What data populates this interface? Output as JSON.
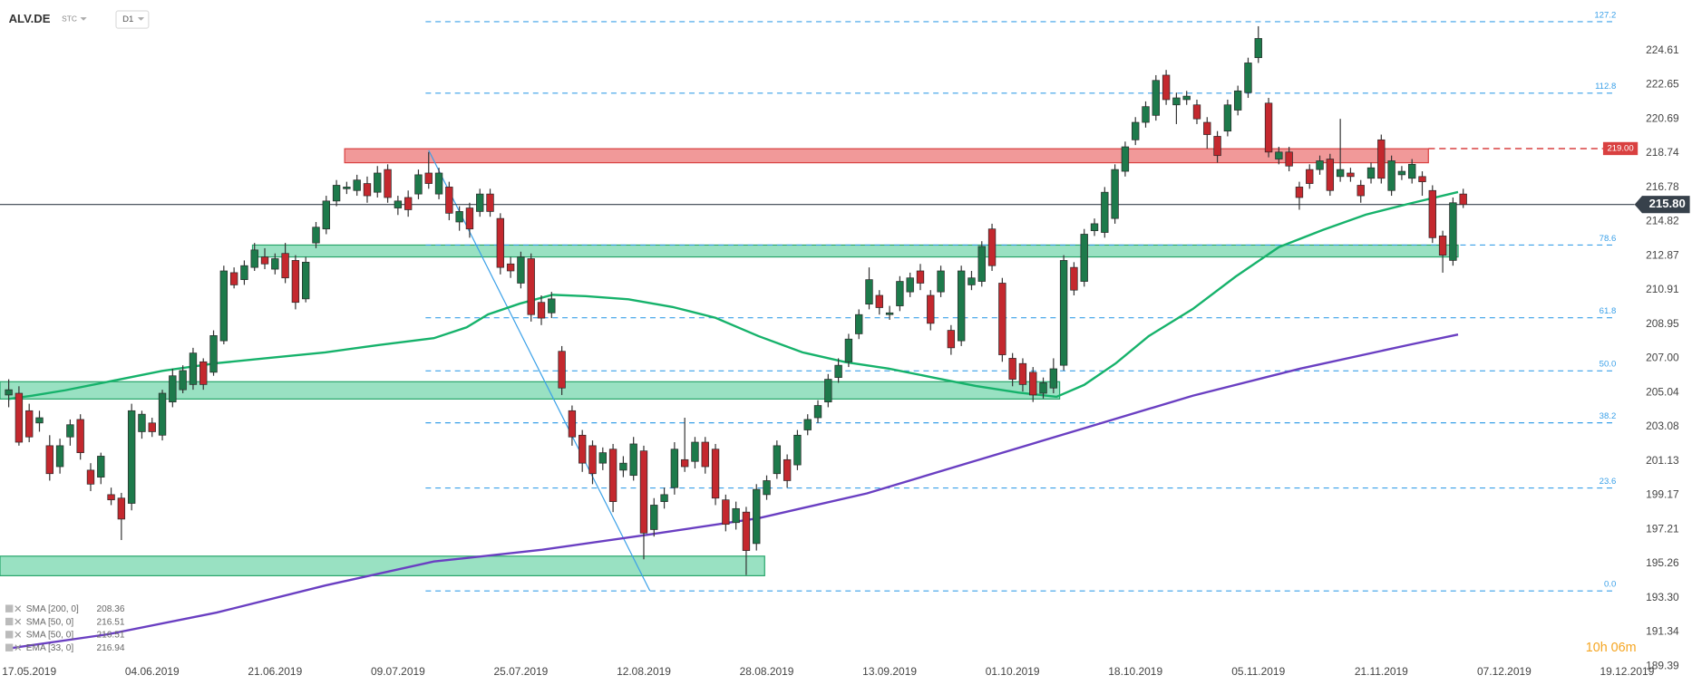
{
  "chart_data": {
    "type": "candlestick",
    "symbol": "ALV.DE",
    "instrument": "STC",
    "timeframe": "D1",
    "countdown": "10h 06m",
    "up_color": "#1d7a4b",
    "down_color": "#c4282e",
    "xlim": [
      -0.85,
      158.3
    ],
    "ylim": [
      189.3,
      227.5
    ],
    "xticks": [
      {
        "value": 2,
        "label": "17.05.2019"
      },
      {
        "value": 14,
        "label": "04.06.2019"
      },
      {
        "value": 26,
        "label": "21.06.2019"
      },
      {
        "value": 38,
        "label": "09.07.2019"
      },
      {
        "value": 50,
        "label": "25.07.2019"
      },
      {
        "value": 62,
        "label": "12.08.2019"
      },
      {
        "value": 74,
        "label": "28.08.2019"
      },
      {
        "value": 86,
        "label": "13.09.2019"
      },
      {
        "value": 98,
        "label": "01.10.2019"
      },
      {
        "value": 110,
        "label": "18.10.2019"
      },
      {
        "value": 122,
        "label": "05.11.2019"
      },
      {
        "value": 134,
        "label": "21.11.2019"
      },
      {
        "value": 146,
        "label": "07.12.2019"
      },
      {
        "value": 158,
        "label": "19.12.2019"
      }
    ],
    "yticks": [
      224.61,
      222.65,
      220.69,
      218.74,
      216.78,
      214.82,
      212.87,
      210.91,
      {
        "value": 208.95,
        "label": "208.95"
      },
      {
        "value": 207.0,
        "label": "207.00"
      },
      205.04,
      203.08,
      201.13,
      199.17,
      197.21,
      195.26,
      {
        "value": 193.3,
        "label": "193.30"
      },
      191.34,
      189.39
    ],
    "ohlc": [
      [
        204.9,
        205.8,
        204.2,
        205.2
      ],
      [
        205.0,
        205.4,
        202.0,
        202.2
      ],
      [
        204.0,
        204.4,
        202.2,
        202.5
      ],
      [
        203.3,
        204.0,
        202.8,
        203.6
      ],
      [
        202.0,
        202.6,
        200.0,
        200.4
      ],
      [
        200.8,
        202.4,
        200.4,
        202.0
      ],
      [
        202.5,
        203.5,
        202.0,
        203.2
      ],
      [
        203.5,
        203.8,
        201.2,
        201.6
      ],
      [
        200.6,
        201.0,
        199.4,
        199.8
      ],
      [
        200.2,
        201.6,
        199.8,
        201.4
      ],
      [
        199.2,
        199.6,
        198.6,
        198.9
      ],
      [
        199.0,
        199.3,
        196.6,
        197.8
      ],
      [
        198.7,
        204.4,
        198.3,
        204.0
      ],
      [
        202.8,
        204.0,
        202.4,
        203.8
      ],
      [
        203.3,
        203.6,
        202.5,
        202.8
      ],
      [
        202.6,
        205.2,
        202.3,
        205.0
      ],
      [
        204.5,
        206.4,
        204.2,
        206.0
      ],
      [
        205.2,
        206.6,
        205.0,
        206.3
      ],
      [
        205.5,
        207.6,
        205.2,
        207.3
      ],
      [
        206.8,
        207.0,
        205.2,
        205.5
      ],
      [
        206.2,
        208.6,
        206.0,
        208.3
      ],
      [
        208.0,
        212.3,
        207.8,
        212.0
      ],
      [
        211.9,
        212.2,
        211.0,
        211.2
      ],
      [
        211.5,
        212.6,
        211.2,
        212.3
      ],
      [
        212.2,
        213.6,
        212.0,
        213.2
      ],
      [
        212.8,
        213.3,
        212.1,
        212.4
      ],
      [
        212.1,
        213.0,
        211.8,
        212.7
      ],
      [
        213.0,
        213.6,
        211.3,
        211.6
      ],
      [
        212.6,
        212.9,
        209.8,
        210.2
      ],
      [
        210.4,
        212.8,
        210.2,
        212.5
      ],
      [
        213.6,
        214.8,
        213.3,
        214.5
      ],
      [
        214.4,
        216.3,
        214.1,
        216.0
      ],
      [
        216.0,
        217.2,
        215.7,
        216.9
      ],
      [
        216.7,
        217.1,
        216.4,
        216.8
      ],
      [
        216.6,
        217.5,
        216.3,
        217.2
      ],
      [
        217.0,
        217.4,
        215.9,
        216.3
      ],
      [
        216.5,
        218.0,
        216.2,
        217.6
      ],
      [
        217.8,
        218.1,
        215.9,
        216.2
      ],
      [
        215.6,
        216.3,
        215.2,
        216.0
      ],
      [
        216.2,
        216.6,
        215.1,
        215.5
      ],
      [
        216.4,
        217.8,
        216.1,
        217.5
      ],
      [
        217.6,
        218.8,
        216.7,
        217.0
      ],
      [
        216.4,
        217.9,
        216.1,
        217.6
      ],
      [
        216.8,
        217.1,
        214.9,
        215.3
      ],
      [
        214.8,
        215.7,
        214.3,
        215.4
      ],
      [
        215.6,
        215.9,
        213.9,
        214.4
      ],
      [
        215.4,
        216.7,
        215.1,
        216.4
      ],
      [
        216.4,
        216.7,
        215.1,
        215.4
      ],
      [
        215.0,
        215.3,
        211.8,
        212.2
      ],
      [
        212.4,
        212.8,
        211.6,
        212.0
      ],
      [
        211.3,
        213.1,
        211.0,
        212.8
      ],
      [
        212.7,
        213.0,
        209.1,
        209.5
      ],
      [
        210.2,
        210.6,
        208.9,
        209.3
      ],
      [
        209.6,
        210.8,
        209.3,
        210.4
      ],
      [
        207.4,
        207.7,
        204.9,
        205.3
      ],
      [
        204.0,
        204.3,
        202.0,
        202.5
      ],
      [
        202.6,
        202.9,
        200.5,
        201.0
      ],
      [
        202.0,
        202.3,
        199.8,
        200.4
      ],
      [
        201.0,
        201.9,
        200.6,
        201.6
      ],
      [
        201.8,
        202.1,
        198.2,
        198.8
      ],
      [
        200.6,
        201.4,
        200.2,
        201.0
      ],
      [
        200.3,
        202.5,
        200.0,
        202.1
      ],
      [
        201.7,
        202.0,
        195.5,
        197.0
      ],
      [
        197.2,
        199.0,
        196.8,
        198.6
      ],
      [
        198.8,
        199.6,
        198.4,
        199.2
      ],
      [
        199.6,
        202.2,
        199.2,
        201.8
      ],
      [
        201.2,
        203.6,
        200.5,
        200.8
      ],
      [
        201.1,
        202.5,
        200.7,
        202.2
      ],
      [
        202.2,
        202.5,
        200.4,
        200.8
      ],
      [
        201.8,
        202.1,
        198.6,
        199.0
      ],
      [
        198.9,
        199.2,
        197.1,
        197.5
      ],
      [
        197.6,
        198.8,
        197.2,
        198.4
      ],
      [
        198.2,
        198.5,
        194.6,
        196.0
      ],
      [
        196.4,
        199.8,
        196.0,
        199.5
      ],
      [
        199.2,
        200.3,
        198.9,
        200.0
      ],
      [
        200.4,
        202.3,
        200.1,
        202.0
      ],
      [
        201.2,
        201.5,
        199.6,
        200.0
      ],
      [
        200.9,
        202.9,
        200.6,
        202.6
      ],
      [
        202.9,
        203.8,
        202.6,
        203.5
      ],
      [
        203.6,
        204.6,
        203.3,
        204.3
      ],
      [
        204.5,
        206.1,
        204.2,
        205.8
      ],
      [
        205.9,
        207.0,
        205.6,
        206.6
      ],
      [
        206.8,
        208.4,
        206.5,
        208.1
      ],
      [
        208.4,
        209.8,
        208.1,
        209.5
      ],
      [
        210.1,
        212.2,
        209.8,
        211.5
      ],
      [
        210.6,
        210.9,
        209.5,
        209.9
      ],
      [
        209.5,
        210.0,
        209.2,
        209.6
      ],
      [
        210.0,
        211.7,
        209.7,
        211.4
      ],
      [
        210.8,
        211.9,
        210.5,
        211.6
      ],
      [
        212.0,
        212.4,
        210.9,
        211.3
      ],
      [
        210.6,
        210.9,
        208.6,
        209.0
      ],
      [
        210.8,
        212.3,
        210.5,
        212.0
      ],
      [
        208.6,
        208.9,
        207.2,
        207.6
      ],
      [
        208.0,
        212.3,
        207.7,
        212.0
      ],
      [
        211.2,
        212.0,
        210.9,
        211.6
      ],
      [
        211.4,
        213.7,
        211.1,
        213.4
      ],
      [
        214.4,
        214.7,
        212.0,
        212.3
      ],
      [
        211.3,
        211.6,
        206.8,
        207.2
      ],
      [
        207.0,
        207.3,
        205.4,
        205.8
      ],
      [
        206.7,
        207.0,
        205.1,
        205.5
      ],
      [
        206.2,
        206.5,
        204.5,
        204.9
      ],
      [
        205.0,
        205.9,
        204.7,
        205.6
      ],
      [
        205.3,
        207.0,
        205.0,
        206.4
      ],
      [
        206.6,
        212.9,
        206.3,
        212.6
      ],
      [
        212.2,
        212.5,
        210.6,
        210.9
      ],
      [
        211.4,
        214.4,
        211.1,
        214.1
      ],
      [
        214.3,
        215.0,
        214.0,
        214.7
      ],
      [
        214.2,
        216.8,
        213.9,
        216.5
      ],
      [
        215.0,
        218.1,
        214.7,
        217.8
      ],
      [
        217.7,
        219.4,
        217.4,
        219.1
      ],
      [
        219.5,
        220.8,
        219.2,
        220.5
      ],
      [
        220.5,
        221.7,
        220.2,
        221.4
      ],
      [
        220.9,
        223.2,
        220.6,
        222.9
      ],
      [
        223.2,
        223.5,
        221.5,
        221.8
      ],
      [
        221.5,
        222.2,
        220.4,
        221.9
      ],
      [
        221.8,
        222.3,
        221.5,
        222.0
      ],
      [
        221.5,
        221.8,
        220.4,
        220.7
      ],
      [
        220.5,
        220.8,
        219.0,
        219.8
      ],
      [
        219.7,
        220.0,
        218.2,
        218.6
      ],
      [
        220.0,
        221.8,
        219.7,
        221.5
      ],
      [
        221.2,
        222.6,
        220.9,
        222.3
      ],
      [
        222.2,
        224.2,
        221.9,
        223.9
      ],
      [
        224.2,
        226.0,
        223.9,
        225.3
      ],
      [
        221.6,
        221.9,
        218.5,
        218.8
      ],
      [
        218.4,
        219.1,
        218.1,
        218.8
      ],
      [
        218.8,
        219.1,
        217.7,
        218.0
      ],
      [
        216.8,
        217.1,
        215.5,
        216.2
      ],
      [
        217.8,
        218.1,
        216.7,
        217.0
      ],
      [
        217.8,
        218.6,
        217.5,
        218.3
      ],
      [
        218.4,
        218.7,
        216.3,
        216.6
      ],
      [
        217.4,
        220.7,
        217.1,
        217.8
      ],
      [
        217.6,
        217.9,
        217.1,
        217.4
      ],
      [
        216.9,
        217.2,
        215.9,
        216.3
      ],
      [
        217.3,
        218.2,
        217.0,
        217.9
      ],
      [
        219.5,
        219.8,
        217.0,
        217.3
      ],
      [
        216.6,
        218.6,
        216.3,
        218.3
      ],
      [
        217.5,
        218.0,
        217.2,
        217.7
      ],
      [
        217.3,
        218.4,
        217.0,
        218.1
      ],
      [
        217.4,
        217.7,
        216.3,
        217.1
      ],
      [
        216.6,
        216.9,
        213.6,
        213.9
      ],
      [
        214.0,
        214.3,
        211.9,
        212.9
      ],
      [
        212.6,
        216.2,
        212.3,
        215.9
      ],
      [
        216.4,
        216.7,
        215.6,
        215.8
      ]
    ],
    "series": [
      {
        "name": "SMA [50, 0]",
        "color": "#16b26b",
        "x": [
          0,
          2.3,
          5.5,
          9.7,
          15.0,
          20.3,
          25.6,
          30.9,
          36.2,
          41.5,
          44.7,
          46.8,
          49.9,
          53.1,
          56.3,
          60.5,
          64.8,
          69.0,
          73.2,
          77.5,
          81.7,
          85.9,
          90.2,
          94.4,
          98.6,
          102.3,
          105.0,
          108.1,
          111.3,
          115.6,
          119.8,
          124.0,
          128.3,
          132.5,
          136.7,
          141.5
        ],
        "values": [
          204.67,
          204.86,
          205.17,
          205.66,
          206.28,
          206.72,
          207.03,
          207.34,
          207.77,
          208.15,
          208.77,
          209.51,
          210.13,
          210.63,
          210.56,
          210.38,
          209.94,
          209.32,
          208.27,
          207.34,
          206.78,
          206.41,
          205.91,
          205.42,
          205.04,
          204.8,
          205.48,
          206.72,
          208.27,
          209.82,
          211.68,
          213.36,
          214.35,
          215.22,
          215.84,
          216.51
        ]
      },
      {
        "name": "SMA [200, 0]",
        "color": "#6a3fc2",
        "x": [
          0,
          9.7,
          20.3,
          30.9,
          41.5,
          52.1,
          62.6,
          73.2,
          83.8,
          94.4,
          105.0,
          115.6,
          126.1,
          136.7,
          141.5
        ],
        "values": [
          190.4,
          191.21,
          192.45,
          194.0,
          195.37,
          196.05,
          196.92,
          197.85,
          199.27,
          201.14,
          203.0,
          204.86,
          206.41,
          207.77,
          208.36
        ]
      }
    ],
    "zones": [
      {
        "color": "#ee8080",
        "border": "#d94040",
        "x": [
          32.8,
          138.6
        ],
        "y": [
          218.19,
          218.99
        ]
      },
      {
        "color": "#7fd9b3",
        "border": "#27a56a",
        "x": [
          23.8,
          141.5
        ],
        "y": [
          212.8,
          213.48
        ]
      },
      {
        "color": "#7fd9b3",
        "border": "#27a56a",
        "x": [
          -0.85,
          102.6
        ],
        "y": [
          204.67,
          205.66
        ]
      },
      {
        "color": "#7fd9b3",
        "border": "#27a56a",
        "x": [
          -0.85,
          73.8
        ],
        "y": [
          194.56,
          195.68
        ]
      }
    ],
    "trendline": {
      "color": "#3aa0e8",
      "x": [
        41,
        62.6
      ],
      "y": [
        218.9,
        193.69
      ]
    },
    "fib_levels": [
      {
        "value": 226.26,
        "label": "127.2"
      },
      {
        "value": 222.17,
        "label": "112.8"
      },
      {
        "value": 213.48,
        "label": "78.6"
      },
      {
        "value": 209.32,
        "label": "61.8"
      },
      {
        "value": 206.28,
        "label": "50.0"
      },
      {
        "value": 203.31,
        "label": "38.2"
      },
      {
        "value": 199.58,
        "label": "23.6"
      },
      {
        "value": 193.69,
        "label": "0.0"
      }
    ],
    "fib_start": 40.7,
    "fib_color": "#3aa0e8",
    "price_lines": [
      {
        "value": 219.0,
        "label": "219.00",
        "color": "#d94040",
        "style": "dashed",
        "from": 138.6
      },
      {
        "value": 215.8,
        "label": "215.80",
        "color": "#37414b",
        "style": "solid",
        "from": -0.85
      }
    ],
    "indicators": [
      {
        "name": "SMA [200, 0]",
        "value": 208.36
      },
      {
        "name": "SMA [50, 0]",
        "value": 216.51
      },
      {
        "name": "SMA [50, 0]",
        "value": 216.51
      },
      {
        "name": "EMA [33, 0]",
        "value": 216.94
      }
    ]
  }
}
